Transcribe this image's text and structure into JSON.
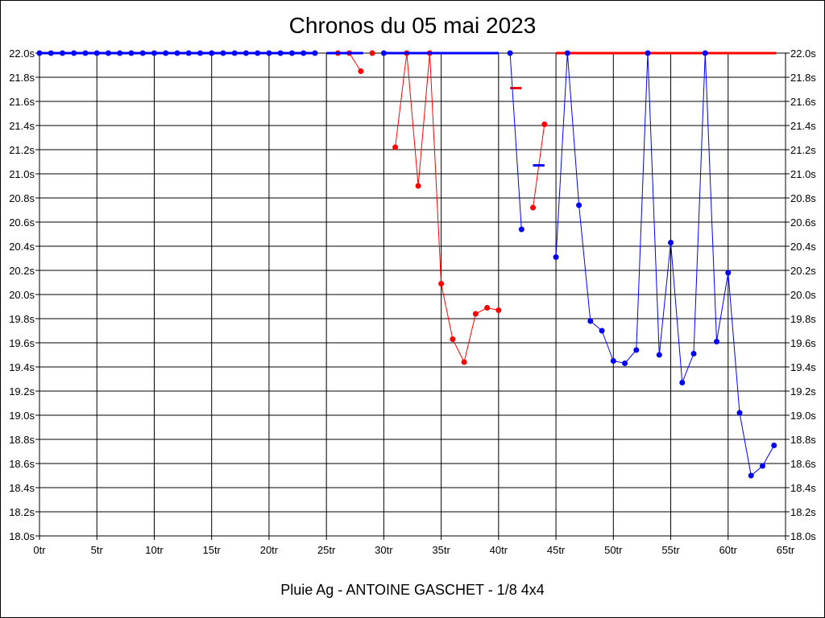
{
  "chart_data": {
    "type": "line",
    "title": "Chronos du 05 mai 2023",
    "subtitle": "Pluie Ag - ANTOINE GASCHET - 1/8 4x4",
    "x_ticks": [
      "0tr",
      "5tr",
      "10tr",
      "15tr",
      "20tr",
      "25tr",
      "30tr",
      "35tr",
      "40tr",
      "45tr",
      "50tr",
      "55tr",
      "60tr",
      "65tr"
    ],
    "y_ticks": [
      "18.0s",
      "18.2s",
      "18.4s",
      "18.6s",
      "18.8s",
      "19.0s",
      "19.2s",
      "19.4s",
      "19.6s",
      "19.8s",
      "20.0s",
      "20.2s",
      "20.4s",
      "20.6s",
      "20.8s",
      "21.0s",
      "21.2s",
      "21.4s",
      "21.6s",
      "21.8s",
      "22.0s"
    ],
    "xlim": [
      0,
      65
    ],
    "ylim": [
      18.0,
      22.0
    ],
    "grid": true,
    "colors": {
      "red": "#ff0000",
      "blue": "#0000ff"
    },
    "series": [
      {
        "color": "#ff0000",
        "segments": [
          [
            [
              26,
              22.0
            ],
            [
              27,
              22.0
            ],
            [
              28,
              21.85
            ]
          ],
          [
            [
              31,
              21.22
            ],
            [
              32,
              22.0
            ],
            [
              33,
              20.9
            ],
            [
              34,
              22.0
            ],
            [
              35,
              20.09
            ],
            [
              36,
              19.63
            ],
            [
              37,
              19.44
            ],
            [
              38,
              19.84
            ],
            [
              39,
              19.89
            ],
            [
              40,
              19.87
            ]
          ],
          [
            [
              43,
              20.72
            ],
            [
              44,
              21.41
            ]
          ]
        ],
        "dots": [
          [
            26,
            22.0
          ],
          [
            27,
            22.0
          ],
          [
            28,
            21.85
          ],
          [
            29,
            22.0
          ],
          [
            31,
            21.22
          ],
          [
            32,
            22.0
          ],
          [
            33,
            20.9
          ],
          [
            34,
            22.0
          ],
          [
            35,
            20.09
          ],
          [
            36,
            19.63
          ],
          [
            37,
            19.44
          ],
          [
            38,
            19.84
          ],
          [
            39,
            19.89
          ],
          [
            40,
            19.87
          ],
          [
            43,
            20.72
          ],
          [
            44,
            21.41
          ]
        ],
        "capped_ranges": [
          [
            45,
            64.2
          ]
        ],
        "averages": [
          {
            "x": [
              41,
              42
            ],
            "y": 21.71
          }
        ]
      },
      {
        "color": "#0000ff",
        "segments": [
          [
            [
              0,
              22.0
            ],
            [
              1,
              22.0
            ],
            [
              2,
              22.0
            ],
            [
              3,
              22.0
            ],
            [
              4,
              22.0
            ],
            [
              5,
              22.0
            ],
            [
              6,
              22.0
            ],
            [
              7,
              22.0
            ],
            [
              8,
              22.0
            ],
            [
              9,
              22.0
            ],
            [
              10,
              22.0
            ],
            [
              11,
              22.0
            ],
            [
              12,
              22.0
            ],
            [
              13,
              22.0
            ],
            [
              14,
              22.0
            ],
            [
              15,
              22.0
            ],
            [
              16,
              22.0
            ],
            [
              17,
              22.0
            ],
            [
              18,
              22.0
            ],
            [
              19,
              22.0
            ],
            [
              20,
              22.0
            ],
            [
              21,
              22.0
            ],
            [
              22,
              22.0
            ],
            [
              23,
              22.0
            ],
            [
              24,
              22.0
            ]
          ],
          [
            [
              41,
              22.0
            ],
            [
              42,
              20.54
            ]
          ],
          [
            [
              45,
              20.31
            ],
            [
              46,
              22.0
            ],
            [
              47,
              20.74
            ],
            [
              48,
              19.78
            ],
            [
              49,
              19.7
            ],
            [
              50,
              19.45
            ],
            [
              51,
              19.43
            ],
            [
              52,
              19.54
            ],
            [
              53,
              22.0
            ],
            [
              54,
              19.5
            ],
            [
              55,
              20.43
            ],
            [
              56,
              19.27
            ],
            [
              57,
              19.51
            ],
            [
              58,
              22.0
            ],
            [
              59,
              19.61
            ],
            [
              60,
              20.18
            ],
            [
              61,
              19.02
            ],
            [
              62,
              18.5
            ],
            [
              63,
              18.58
            ],
            [
              64,
              18.75
            ]
          ]
        ],
        "dots": [
          [
            0,
            22.0
          ],
          [
            1,
            22.0
          ],
          [
            2,
            22.0
          ],
          [
            3,
            22.0
          ],
          [
            4,
            22.0
          ],
          [
            5,
            22.0
          ],
          [
            6,
            22.0
          ],
          [
            7,
            22.0
          ],
          [
            8,
            22.0
          ],
          [
            9,
            22.0
          ],
          [
            10,
            22.0
          ],
          [
            11,
            22.0
          ],
          [
            12,
            22.0
          ],
          [
            13,
            22.0
          ],
          [
            14,
            22.0
          ],
          [
            15,
            22.0
          ],
          [
            16,
            22.0
          ],
          [
            17,
            22.0
          ],
          [
            18,
            22.0
          ],
          [
            19,
            22.0
          ],
          [
            20,
            22.0
          ],
          [
            21,
            22.0
          ],
          [
            22,
            22.0
          ],
          [
            23,
            22.0
          ],
          [
            24,
            22.0
          ],
          [
            30,
            22.0
          ],
          [
            41,
            22.0
          ],
          [
            42,
            20.54
          ],
          [
            45,
            20.31
          ],
          [
            46,
            22.0
          ],
          [
            47,
            20.74
          ],
          [
            48,
            19.78
          ],
          [
            49,
            19.7
          ],
          [
            50,
            19.45
          ],
          [
            51,
            19.43
          ],
          [
            52,
            19.54
          ],
          [
            53,
            22.0
          ],
          [
            54,
            19.5
          ],
          [
            55,
            20.43
          ],
          [
            56,
            19.27
          ],
          [
            57,
            19.51
          ],
          [
            58,
            22.0
          ],
          [
            59,
            19.61
          ],
          [
            60,
            20.18
          ],
          [
            61,
            19.02
          ],
          [
            62,
            18.5
          ],
          [
            63,
            18.58
          ],
          [
            64,
            18.75
          ]
        ],
        "capped_ranges": [
          [
            0,
            24
          ],
          [
            25,
            28.2
          ],
          [
            30,
            40
          ]
        ],
        "averages": [
          {
            "x": [
              43,
              44
            ],
            "y": 21.07
          }
        ]
      }
    ]
  }
}
